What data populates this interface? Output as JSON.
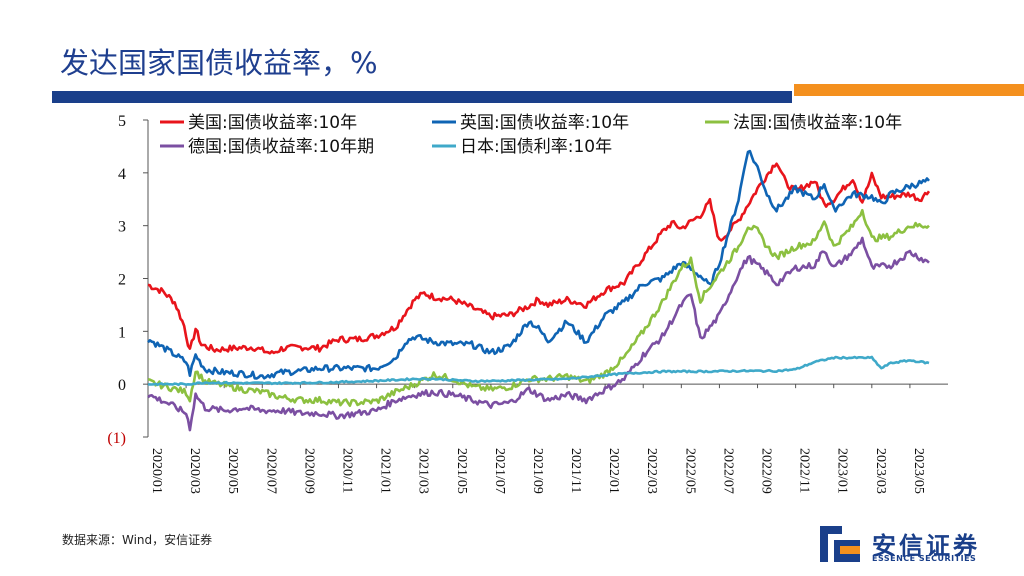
{
  "page": {
    "title": "发达国家国债收益率，%",
    "source": "数据来源：Wind，安信证券"
  },
  "logo": {
    "name_cn": "安信证券",
    "name_en": "ESSENCE SECURITIES"
  },
  "colors": {
    "title": "#1f3f8f",
    "bar_blue": "#1a3f8a",
    "bar_orange": "#f4901e"
  },
  "chart_data": {
    "type": "line",
    "title": "",
    "xlabel": "",
    "ylabel": "",
    "ylim": [
      -1,
      5
    ],
    "yticks": [
      -1,
      0,
      1,
      2,
      3,
      4,
      5
    ],
    "ytick_labels": [
      "(1)",
      "0",
      "1",
      "2",
      "3",
      "4",
      "5"
    ],
    "xlim": [
      0,
      42
    ],
    "x_unit": "months since 2020/01",
    "xtick_labels": [
      "2020/01",
      "2020/03",
      "2020/05",
      "2020/07",
      "2020/09",
      "2020/11",
      "2021/01",
      "2021/03",
      "2021/05",
      "2021/07",
      "2021/09",
      "2021/11",
      "2022/01",
      "2022/03",
      "2022/05",
      "2022/07",
      "2022/09",
      "2022/11",
      "2023/01",
      "2023/03",
      "2023/05"
    ],
    "series": [
      {
        "name": "美国:国债收益率:10年",
        "color": "#e8141b",
        "points": [
          [
            0,
            1.88
          ],
          [
            0.8,
            1.75
          ],
          [
            1.4,
            1.55
          ],
          [
            1.9,
            1.1
          ],
          [
            2.2,
            0.62
          ],
          [
            2.5,
            1.05
          ],
          [
            2.8,
            0.75
          ],
          [
            3.5,
            0.65
          ],
          [
            4.5,
            0.68
          ],
          [
            5.5,
            0.7
          ],
          [
            6.5,
            0.58
          ],
          [
            7,
            0.67
          ],
          [
            8,
            0.7
          ],
          [
            9,
            0.68
          ],
          [
            10,
            0.85
          ],
          [
            11,
            0.85
          ],
          [
            12,
            0.92
          ],
          [
            13,
            1.08
          ],
          [
            13.5,
            1.35
          ],
          [
            14,
            1.6
          ],
          [
            14.5,
            1.72
          ],
          [
            15,
            1.65
          ],
          [
            16,
            1.6
          ],
          [
            17,
            1.45
          ],
          [
            18,
            1.28
          ],
          [
            19,
            1.31
          ],
          [
            20,
            1.48
          ],
          [
            20.5,
            1.6
          ],
          [
            21,
            1.5
          ],
          [
            22,
            1.6
          ],
          [
            23,
            1.5
          ],
          [
            24,
            1.78
          ],
          [
            25,
            1.92
          ],
          [
            26,
            2.4
          ],
          [
            27,
            2.88
          ],
          [
            27.5,
            3.05
          ],
          [
            28,
            2.95
          ],
          [
            29,
            3.2
          ],
          [
            29.5,
            3.45
          ],
          [
            30,
            2.7
          ],
          [
            31,
            3.1
          ],
          [
            32,
            3.7
          ],
          [
            33,
            4.22
          ],
          [
            33.5,
            3.8
          ],
          [
            34,
            3.65
          ],
          [
            35,
            3.85
          ],
          [
            35.5,
            3.4
          ],
          [
            36,
            3.5
          ],
          [
            37,
            3.9
          ],
          [
            37.5,
            3.45
          ],
          [
            38,
            3.95
          ],
          [
            38.5,
            3.55
          ],
          [
            39,
            3.55
          ],
          [
            40,
            3.6
          ],
          [
            40.5,
            3.5
          ],
          [
            41,
            3.65
          ]
        ]
      },
      {
        "name": "英国:国债收益率:10年",
        "color": "#0f64b4",
        "points": [
          [
            0,
            0.85
          ],
          [
            1,
            0.65
          ],
          [
            2,
            0.42
          ],
          [
            2.2,
            0.2
          ],
          [
            2.5,
            0.55
          ],
          [
            3,
            0.28
          ],
          [
            4,
            0.22
          ],
          [
            5,
            0.2
          ],
          [
            6,
            0.15
          ],
          [
            7,
            0.22
          ],
          [
            8,
            0.25
          ],
          [
            9,
            0.3
          ],
          [
            10,
            0.3
          ],
          [
            11,
            0.3
          ],
          [
            12,
            0.3
          ],
          [
            13,
            0.5
          ],
          [
            13.5,
            0.8
          ],
          [
            14,
            0.9
          ],
          [
            15,
            0.8
          ],
          [
            16,
            0.76
          ],
          [
            17,
            0.75
          ],
          [
            18,
            0.6
          ],
          [
            19,
            0.72
          ],
          [
            20,
            1.2
          ],
          [
            20.5,
            1.05
          ],
          [
            21,
            0.82
          ],
          [
            22,
            1.18
          ],
          [
            23,
            0.8
          ],
          [
            24,
            1.3
          ],
          [
            25,
            1.55
          ],
          [
            26,
            1.9
          ],
          [
            27,
            2.0
          ],
          [
            28,
            2.3
          ],
          [
            29,
            2.05
          ],
          [
            29.5,
            1.85
          ],
          [
            30,
            2.3
          ],
          [
            31,
            3.5
          ],
          [
            31.5,
            4.45
          ],
          [
            32,
            4.1
          ],
          [
            32.5,
            3.6
          ],
          [
            33,
            3.3
          ],
          [
            34,
            3.7
          ],
          [
            35,
            3.5
          ],
          [
            35.5,
            3.8
          ],
          [
            36,
            3.3
          ],
          [
            37,
            3.6
          ],
          [
            38,
            3.55
          ],
          [
            38.5,
            3.4
          ],
          [
            39,
            3.6
          ],
          [
            40,
            3.75
          ],
          [
            41,
            3.85
          ]
        ]
      },
      {
        "name": "法国:国债收益率:10年",
        "color": "#8cc040",
        "points": [
          [
            0,
            0.05
          ],
          [
            1,
            -0.05
          ],
          [
            2,
            -0.15
          ],
          [
            2.2,
            -0.28
          ],
          [
            2.5,
            0.25
          ],
          [
            3,
            0.05
          ],
          [
            4,
            -0.02
          ],
          [
            5,
            -0.1
          ],
          [
            6,
            -0.15
          ],
          [
            7,
            -0.25
          ],
          [
            8,
            -0.3
          ],
          [
            9,
            -0.3
          ],
          [
            10,
            -0.35
          ],
          [
            11,
            -0.35
          ],
          [
            12,
            -0.32
          ],
          [
            13,
            -0.15
          ],
          [
            14,
            0.0
          ],
          [
            15,
            0.18
          ],
          [
            16,
            0.1
          ],
          [
            17,
            -0.05
          ],
          [
            18,
            -0.1
          ],
          [
            19,
            -0.05
          ],
          [
            20,
            0.1
          ],
          [
            21,
            0.1
          ],
          [
            22,
            0.15
          ],
          [
            23,
            0.05
          ],
          [
            24,
            0.2
          ],
          [
            25,
            0.5
          ],
          [
            26,
            1.0
          ],
          [
            27,
            1.55
          ],
          [
            28,
            2.2
          ],
          [
            28.5,
            2.35
          ],
          [
            29,
            1.6
          ],
          [
            30,
            2.1
          ],
          [
            31,
            2.6
          ],
          [
            31.5,
            3.0
          ],
          [
            32,
            2.9
          ],
          [
            32.5,
            2.6
          ],
          [
            33,
            2.4
          ],
          [
            34,
            2.6
          ],
          [
            35,
            2.7
          ],
          [
            35.5,
            3.1
          ],
          [
            36,
            2.6
          ],
          [
            37,
            3.0
          ],
          [
            37.5,
            3.3
          ],
          [
            38,
            2.75
          ],
          [
            39,
            2.8
          ],
          [
            40,
            3.0
          ],
          [
            41,
            3.0
          ]
        ]
      },
      {
        "name": "德国:国债收益率:10年期",
        "color": "#7b4fa2",
        "points": [
          [
            0,
            -0.2
          ],
          [
            1,
            -0.35
          ],
          [
            2,
            -0.55
          ],
          [
            2.2,
            -0.82
          ],
          [
            2.5,
            -0.2
          ],
          [
            3,
            -0.45
          ],
          [
            4,
            -0.5
          ],
          [
            5,
            -0.45
          ],
          [
            6,
            -0.5
          ],
          [
            7,
            -0.5
          ],
          [
            8,
            -0.55
          ],
          [
            9,
            -0.55
          ],
          [
            10,
            -0.6
          ],
          [
            11,
            -0.55
          ],
          [
            12,
            -0.5
          ],
          [
            13,
            -0.3
          ],
          [
            14,
            -0.2
          ],
          [
            15,
            -0.15
          ],
          [
            16,
            -0.2
          ],
          [
            17,
            -0.3
          ],
          [
            18,
            -0.4
          ],
          [
            19,
            -0.35
          ],
          [
            20,
            -0.1
          ],
          [
            21,
            -0.3
          ],
          [
            22,
            -0.2
          ],
          [
            23,
            -0.3
          ],
          [
            24,
            -0.1
          ],
          [
            25,
            0.1
          ],
          [
            26,
            0.55
          ],
          [
            27,
            0.9
          ],
          [
            28,
            1.5
          ],
          [
            28.5,
            1.7
          ],
          [
            29,
            0.85
          ],
          [
            30,
            1.3
          ],
          [
            31,
            2.1
          ],
          [
            31.5,
            2.4
          ],
          [
            32,
            2.25
          ],
          [
            32.5,
            2.1
          ],
          [
            33,
            1.9
          ],
          [
            34,
            2.2
          ],
          [
            35,
            2.25
          ],
          [
            35.5,
            2.55
          ],
          [
            36,
            2.2
          ],
          [
            37,
            2.5
          ],
          [
            37.5,
            2.75
          ],
          [
            38,
            2.2
          ],
          [
            39,
            2.25
          ],
          [
            40,
            2.5
          ],
          [
            41,
            2.3
          ]
        ]
      },
      {
        "name": "日本:国债利率:10年",
        "color": "#3fa9c9",
        "points": [
          [
            0,
            0.0
          ],
          [
            2,
            0.0
          ],
          [
            3,
            0.03
          ],
          [
            5,
            0.02
          ],
          [
            7,
            0.02
          ],
          [
            9,
            0.03
          ],
          [
            11,
            0.05
          ],
          [
            13,
            0.08
          ],
          [
            14,
            0.1
          ],
          [
            15,
            0.1
          ],
          [
            17,
            0.06
          ],
          [
            18,
            0.06
          ],
          [
            20,
            0.08
          ],
          [
            22,
            0.1
          ],
          [
            24,
            0.17
          ],
          [
            25,
            0.2
          ],
          [
            27,
            0.24
          ],
          [
            29,
            0.24
          ],
          [
            31,
            0.25
          ],
          [
            33,
            0.25
          ],
          [
            34,
            0.28
          ],
          [
            35,
            0.42
          ],
          [
            36,
            0.5
          ],
          [
            37,
            0.5
          ],
          [
            38,
            0.5
          ],
          [
            38.5,
            0.3
          ],
          [
            39,
            0.4
          ],
          [
            40,
            0.45
          ],
          [
            41,
            0.4
          ]
        ]
      }
    ]
  }
}
